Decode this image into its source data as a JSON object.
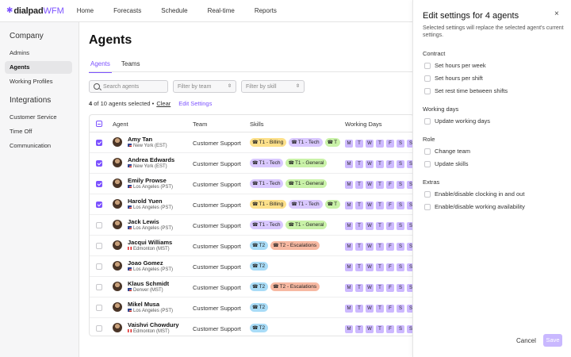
{
  "app": {
    "logo_brand": "dialpad",
    "logo_product": "WFM"
  },
  "nav": [
    "Home",
    "Forecasts",
    "Schedule",
    "Real-time",
    "Reports"
  ],
  "sidebar": {
    "company_heading": "Company",
    "company_items": [
      "Admins",
      "Agents",
      "Working Profiles"
    ],
    "integrations_heading": "Integrations",
    "integrations_items": [
      "Customer Service",
      "Time Off",
      "Communication"
    ]
  },
  "page": {
    "title": "Agents",
    "tabs": [
      "Agents",
      "Teams"
    ]
  },
  "filters": {
    "search_placeholder": "Search agents",
    "team_placeholder": "Filter by team",
    "skill_placeholder": "Filter by skill"
  },
  "selection": {
    "selected": "4",
    "rest": "of 10 agents selected",
    "sep": "•",
    "clear": "Clear",
    "edit": "Edit Settings"
  },
  "table": {
    "headers": [
      "Agent",
      "Team",
      "Skills",
      "Working Days"
    ],
    "day_letters": [
      "M",
      "T",
      "W",
      "T",
      "F",
      "S",
      "S"
    ],
    "rows": [
      {
        "name": "Amy Tan",
        "location": "New York (EST)",
        "flag": "us",
        "team": "Customer Support",
        "checked": true,
        "skills": [
          "T1 - Billing",
          "T1 - Tech",
          "T"
        ]
      },
      {
        "name": "Andrea Edwards",
        "location": "New York (EST)",
        "flag": "us",
        "team": "Customer Support",
        "checked": true,
        "skills": [
          "T1 - Tech",
          "T1 - General"
        ]
      },
      {
        "name": "Emily Prowse",
        "location": "Los Angeles (PST)",
        "flag": "us",
        "team": "Customer Support",
        "checked": true,
        "skills": [
          "T1 - Tech",
          "T1 - General"
        ]
      },
      {
        "name": "Harold Yuen",
        "location": "Los Angeles (PST)",
        "flag": "us",
        "team": "Customer Support",
        "checked": true,
        "skills": [
          "T1 - Billing",
          "T1 - Tech",
          "T"
        ]
      },
      {
        "name": "Jack Lewis",
        "location": "Los Angeles (PST)",
        "flag": "us",
        "team": "Customer Support",
        "checked": false,
        "skills": [
          "T1 - Tech",
          "T1 - General"
        ]
      },
      {
        "name": "Jacqui Williams",
        "location": "Edmonton (MST)",
        "flag": "ca",
        "team": "Customer Support",
        "checked": false,
        "skills": [
          "T2",
          "T2 - Escalations"
        ]
      },
      {
        "name": "Joao Gomez",
        "location": "Los Angeles (PST)",
        "flag": "us",
        "team": "Customer Support",
        "checked": false,
        "skills": [
          "T2"
        ]
      },
      {
        "name": "Klaus Schmidt",
        "location": "Denver (MST)",
        "flag": "us",
        "team": "Customer Support",
        "checked": false,
        "skills": [
          "T2",
          "T2 - Escalations"
        ]
      },
      {
        "name": "Mikel Musa",
        "location": "Los Angeles (PST)",
        "flag": "us",
        "team": "Customer Support",
        "checked": false,
        "skills": [
          "T2"
        ]
      },
      {
        "name": "Vaishvi Chowdury",
        "location": "Edmonton (MST)",
        "flag": "ca",
        "team": "Customer Support",
        "checked": false,
        "skills": [
          "T2"
        ]
      }
    ]
  },
  "skill_colors": {
    "T1 - Billing": "#fde08a",
    "T1 - Tech": "#d9c8ff",
    "T1 - General": "#c9f2a8",
    "T": "#c9f2a8",
    "T2": "#a9dcf7",
    "T2 - Escalations": "#f7b9a2"
  },
  "panel": {
    "title": "Edit settings for 4 agents",
    "close_icon": "×",
    "description": "Selected settings will replace the selected agent's current settings.",
    "sections": [
      {
        "heading": "Contract",
        "options": [
          "Set hours per week",
          "Set hours per shift",
          "Set rest time between shifts"
        ]
      },
      {
        "heading": "Working days",
        "options": [
          "Update working days"
        ]
      },
      {
        "heading": "Role",
        "options": [
          "Change team",
          "Update skills"
        ]
      },
      {
        "heading": "Extras",
        "options": [
          "Enable/disable clocking in and out",
          "Enable/disable working availability"
        ]
      }
    ],
    "cancel": "Cancel",
    "save": "Save"
  },
  "colors": {
    "accent": "#7c52ff",
    "day_chip": "#cdb9ff"
  }
}
